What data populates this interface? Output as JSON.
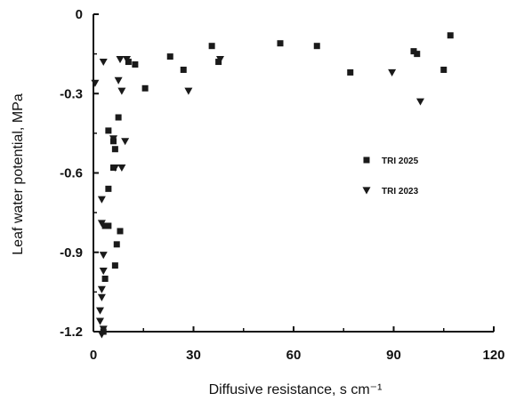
{
  "chart_data": {
    "type": "scatter",
    "xlabel": "Diffusive resistance, s cm⁻¹",
    "ylabel": "Leaf water potential, MPa",
    "xlim": [
      0,
      120
    ],
    "ylim": [
      -1.2,
      0
    ],
    "x_ticks": [
      0,
      30,
      60,
      90,
      120
    ],
    "y_ticks": [
      0,
      -0.3,
      -0.6,
      -0.9,
      -1.2
    ],
    "y_tick_labels": [
      "0",
      "-0.3",
      "-0.6",
      "-0.9",
      "-1.2"
    ],
    "grid": false,
    "legend_position": "right",
    "series": [
      {
        "name": "TRI 2025",
        "marker": "square",
        "color": "#1a1a1a",
        "points": [
          [
            35.5,
            -0.12
          ],
          [
            56,
            -0.11
          ],
          [
            67,
            -0.12
          ],
          [
            77,
            -0.22
          ],
          [
            96,
            -0.14
          ],
          [
            97,
            -0.15
          ],
          [
            105,
            -0.21
          ],
          [
            107,
            -0.08
          ],
          [
            23,
            -0.16
          ],
          [
            27,
            -0.21
          ],
          [
            37.5,
            -0.18
          ],
          [
            12.5,
            -0.19
          ],
          [
            10.5,
            -0.18
          ],
          [
            15.5,
            -0.28
          ],
          [
            7.5,
            -0.39
          ],
          [
            4.5,
            -0.44
          ],
          [
            6,
            -0.48
          ],
          [
            6.5,
            -0.51
          ],
          [
            6,
            -0.58
          ],
          [
            4.5,
            -0.66
          ],
          [
            3.5,
            -0.8
          ],
          [
            4.5,
            -0.8
          ],
          [
            8,
            -0.82
          ],
          [
            7,
            -0.87
          ],
          [
            6.5,
            -0.95
          ],
          [
            3.5,
            -1.0
          ],
          [
            3,
            -1.2
          ]
        ]
      },
      {
        "name": "TRI 2023",
        "marker": "triangle-down",
        "color": "#1a1a1a",
        "points": [
          [
            0.5,
            -0.26
          ],
          [
            3,
            -0.18
          ],
          [
            7.5,
            -0.25
          ],
          [
            8,
            -0.17
          ],
          [
            10,
            -0.17
          ],
          [
            8.5,
            -0.29
          ],
          [
            28.5,
            -0.29
          ],
          [
            38,
            -0.17
          ],
          [
            89.5,
            -0.22
          ],
          [
            98,
            -0.33
          ],
          [
            9.5,
            -0.48
          ],
          [
            8.5,
            -0.58
          ],
          [
            6.5,
            -0.58
          ],
          [
            6,
            -0.47
          ],
          [
            2.5,
            -0.7
          ],
          [
            2.5,
            -0.79
          ],
          [
            3,
            -0.91
          ],
          [
            3,
            -0.97
          ],
          [
            2.5,
            -1.04
          ],
          [
            2.5,
            -1.07
          ],
          [
            2,
            -1.12
          ],
          [
            2,
            -1.16
          ],
          [
            3,
            -1.19
          ],
          [
            2.5,
            -1.21
          ]
        ]
      }
    ]
  }
}
